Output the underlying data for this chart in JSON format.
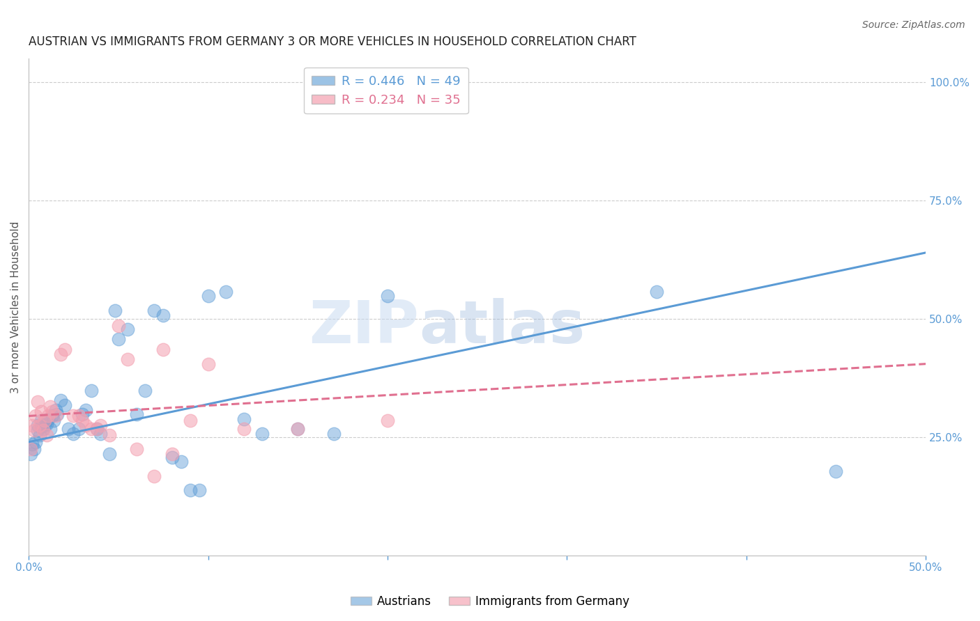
{
  "title": "AUSTRIAN VS IMMIGRANTS FROM GERMANY 3 OR MORE VEHICLES IN HOUSEHOLD CORRELATION CHART",
  "source": "Source: ZipAtlas.com",
  "ylabel": "3 or more Vehicles in Household",
  "right_ytick_vals": [
    1.0,
    0.75,
    0.5,
    0.25
  ],
  "right_ytick_labels": [
    "100.0%",
    "75.0%",
    "50.0%",
    "25.0%"
  ],
  "legend_blue": "R = 0.446   N = 49",
  "legend_pink": "R = 0.234   N = 35",
  "legend_label1": "Austrians",
  "legend_label2": "Immigrants from Germany",
  "blue_color": "#5b9bd5",
  "pink_color": "#f4a0b0",
  "pink_line_color": "#e07090",
  "blue_scatter": [
    [
      0.001,
      0.215
    ],
    [
      0.002,
      0.235
    ],
    [
      0.003,
      0.225
    ],
    [
      0.004,
      0.24
    ],
    [
      0.005,
      0.265
    ],
    [
      0.005,
      0.275
    ],
    [
      0.006,
      0.255
    ],
    [
      0.007,
      0.272
    ],
    [
      0.007,
      0.285
    ],
    [
      0.008,
      0.268
    ],
    [
      0.009,
      0.275
    ],
    [
      0.01,
      0.278
    ],
    [
      0.011,
      0.288
    ],
    [
      0.012,
      0.268
    ],
    [
      0.013,
      0.295
    ],
    [
      0.014,
      0.285
    ],
    [
      0.015,
      0.308
    ],
    [
      0.016,
      0.298
    ],
    [
      0.018,
      0.328
    ],
    [
      0.02,
      0.318
    ],
    [
      0.022,
      0.268
    ],
    [
      0.025,
      0.258
    ],
    [
      0.028,
      0.268
    ],
    [
      0.03,
      0.298
    ],
    [
      0.032,
      0.308
    ],
    [
      0.035,
      0.348
    ],
    [
      0.038,
      0.268
    ],
    [
      0.04,
      0.258
    ],
    [
      0.045,
      0.215
    ],
    [
      0.048,
      0.518
    ],
    [
      0.05,
      0.458
    ],
    [
      0.055,
      0.478
    ],
    [
      0.06,
      0.298
    ],
    [
      0.065,
      0.348
    ],
    [
      0.07,
      0.518
    ],
    [
      0.075,
      0.508
    ],
    [
      0.08,
      0.208
    ],
    [
      0.085,
      0.198
    ],
    [
      0.09,
      0.138
    ],
    [
      0.095,
      0.138
    ],
    [
      0.1,
      0.548
    ],
    [
      0.11,
      0.558
    ],
    [
      0.12,
      0.288
    ],
    [
      0.13,
      0.258
    ],
    [
      0.15,
      0.268
    ],
    [
      0.17,
      0.258
    ],
    [
      0.2,
      0.548
    ],
    [
      0.35,
      0.558
    ],
    [
      0.45,
      0.178
    ]
  ],
  "pink_scatter": [
    [
      0.001,
      0.225
    ],
    [
      0.002,
      0.275
    ],
    [
      0.003,
      0.265
    ],
    [
      0.004,
      0.295
    ],
    [
      0.005,
      0.325
    ],
    [
      0.006,
      0.275
    ],
    [
      0.007,
      0.305
    ],
    [
      0.008,
      0.265
    ],
    [
      0.009,
      0.285
    ],
    [
      0.01,
      0.255
    ],
    [
      0.011,
      0.295
    ],
    [
      0.012,
      0.315
    ],
    [
      0.013,
      0.305
    ],
    [
      0.015,
      0.295
    ],
    [
      0.018,
      0.425
    ],
    [
      0.02,
      0.435
    ],
    [
      0.025,
      0.295
    ],
    [
      0.028,
      0.295
    ],
    [
      0.03,
      0.285
    ],
    [
      0.032,
      0.275
    ],
    [
      0.035,
      0.268
    ],
    [
      0.038,
      0.268
    ],
    [
      0.04,
      0.275
    ],
    [
      0.045,
      0.255
    ],
    [
      0.05,
      0.485
    ],
    [
      0.055,
      0.415
    ],
    [
      0.06,
      0.225
    ],
    [
      0.07,
      0.168
    ],
    [
      0.075,
      0.435
    ],
    [
      0.08,
      0.215
    ],
    [
      0.09,
      0.285
    ],
    [
      0.1,
      0.405
    ],
    [
      0.12,
      0.268
    ],
    [
      0.15,
      0.268
    ],
    [
      0.2,
      0.285
    ]
  ],
  "blue_line_x": [
    0.0,
    0.5
  ],
  "blue_line_y": [
    0.24,
    0.64
  ],
  "pink_line_x": [
    0.0,
    0.5
  ],
  "pink_line_y": [
    0.295,
    0.405
  ],
  "xlim": [
    0.0,
    0.5
  ],
  "ylim": [
    0.0,
    1.05
  ],
  "watermark_text": "ZIP",
  "watermark_text2": "atlas",
  "background_color": "#ffffff",
  "grid_color": "#cccccc",
  "title_fontsize": 12,
  "axis_label_fontsize": 11,
  "tick_fontsize": 11
}
